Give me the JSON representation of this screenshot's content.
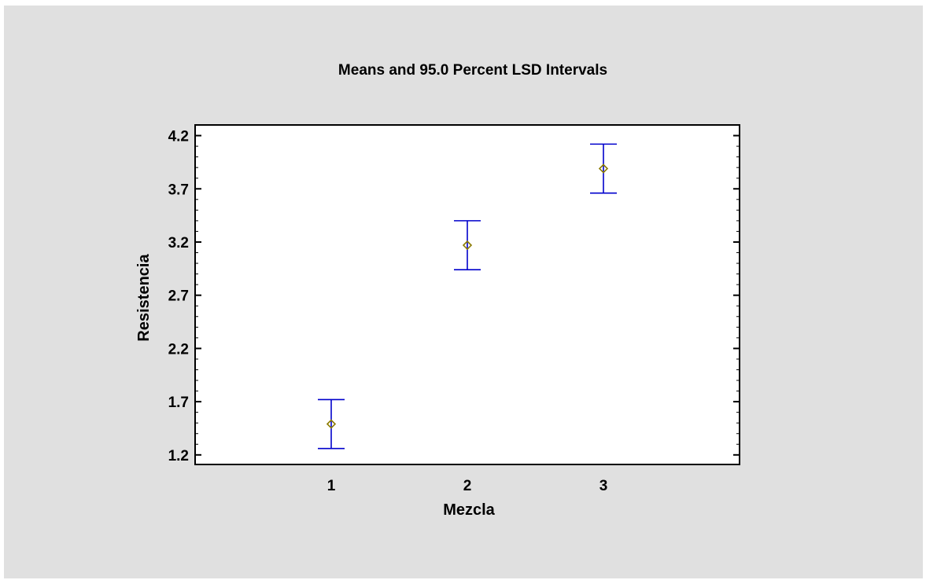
{
  "chart_data": {
    "type": "error-bar",
    "title": "Means and 95.0 Percent LSD Intervals",
    "xlabel": "Mezcla",
    "ylabel": "Resistencia",
    "categories": [
      "1",
      "2",
      "3"
    ],
    "xlim": [
      0,
      4
    ],
    "ylim": [
      1.11,
      4.3
    ],
    "y_ticks": [
      "1.2",
      "1.7",
      "2.2",
      "2.7",
      "3.2",
      "3.7",
      "4.2"
    ],
    "y_tick_values": [
      1.2,
      1.7,
      2.2,
      2.7,
      3.2,
      3.7,
      4.2
    ],
    "y_minor_step": 0.1,
    "means": [
      1.49,
      3.17,
      3.89
    ],
    "lower": [
      1.26,
      2.94,
      3.66
    ],
    "upper": [
      1.72,
      3.4,
      4.12
    ],
    "grid": false,
    "legend": "none",
    "colors": {
      "background": "#e0e0e0",
      "plot_area": "#ffffff",
      "interval": "#0000cc",
      "mean_marker": "#8b7a00"
    }
  }
}
